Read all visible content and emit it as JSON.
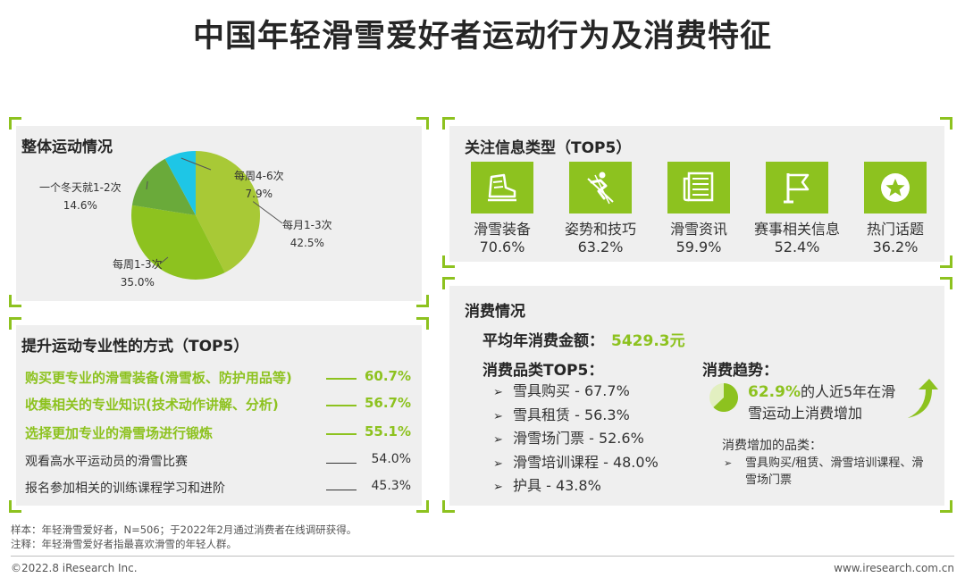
{
  "title": "中国年轻滑雪爱好者运动行为及消费特征",
  "colors": {
    "accent": "#8dc21f",
    "pie": [
      "#a8c936",
      "#8dc21f",
      "#6aaa3a",
      "#1ec6e6"
    ]
  },
  "exercise": {
    "title": "整体运动情况",
    "labels": [
      {
        "name": "每月1-3次",
        "pct": "42.5%"
      },
      {
        "name": "每周1-3次",
        "pct": "35.0%"
      },
      {
        "name": "一个冬天就1-2次",
        "pct": "14.6%"
      },
      {
        "name": "每周4-6次",
        "pct": "7.9%"
      }
    ]
  },
  "chart_data": {
    "type": "pie",
    "title": "整体运动情况",
    "categories": [
      "每月1-3次",
      "每周1-3次",
      "一个冬天就1-2次",
      "每周4-6次"
    ],
    "values": [
      42.5,
      35.0,
      14.6,
      7.9
    ],
    "colors": [
      "#a8c936",
      "#8dc21f",
      "#6aaa3a",
      "#1ec6e6"
    ]
  },
  "methods": {
    "title": "提升运动专业性的方式（TOP5）",
    "items": [
      {
        "label": "购买更专业的滑雪装备(滑雪板、防护用品等)",
        "value": "60.7%",
        "highlight": true
      },
      {
        "label": "收集相关的专业知识(技术动作讲解、分析)",
        "value": "56.7%",
        "highlight": true
      },
      {
        "label": "选择更加专业的滑雪场进行锻炼",
        "value": "55.1%",
        "highlight": true
      },
      {
        "label": "观看高水平运动员的滑雪比赛",
        "value": "54.0%",
        "highlight": false
      },
      {
        "label": "报名参加相关的训练课程学习和进阶",
        "value": "45.3%",
        "highlight": false
      }
    ]
  },
  "info": {
    "title": "关注信息类型（TOP5）",
    "items": [
      {
        "label": "滑雪装备",
        "value": "70.6%",
        "icon": "ski-boot-icon"
      },
      {
        "label": "姿势和技巧",
        "value": "63.2%",
        "icon": "skier-icon"
      },
      {
        "label": "滑雪资讯",
        "value": "59.9%",
        "icon": "newspaper-icon"
      },
      {
        "label": "赛事相关信息",
        "value": "52.4%",
        "icon": "flag-icon"
      },
      {
        "label": "热门话题",
        "value": "36.2%",
        "icon": "star-icon"
      }
    ]
  },
  "consumption": {
    "title": "消费情况",
    "avg_label": "平均年消费金额：",
    "avg_value": "5429.3元",
    "cat_title": "消费品类TOP5：",
    "categories": [
      "雪具购买 - 67.7%",
      "雪具租赁 - 56.3%",
      "滑雪场门票 - 52.6%",
      "滑雪培训课程 - 48.0%",
      "护具 - 43.8%"
    ],
    "trend_title": "消费趋势：",
    "trend_pct": "62.9%",
    "trend_pct_value": 62.9,
    "trend_text": "的人近5年在滑雪运动上消费增加",
    "inc_title": "消费增加的品类：",
    "inc_text": "雪具购买/租赁、滑雪培训课程、滑雪场门票"
  },
  "footer": {
    "sample": "样本：年轻滑雪爱好者，N=506；于2022年2月通过消费者在线调研获得。",
    "note": "注释：年轻滑雪爱好者指最喜欢滑雪的年轻人群。",
    "copyright": "©2022.8 iResearch Inc.",
    "site": "www.iresearch.com.cn"
  }
}
